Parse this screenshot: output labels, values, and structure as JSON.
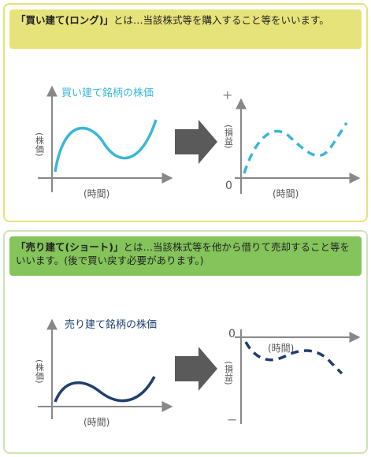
{
  "long": {
    "banner_term": "「買い建て(ロング)」",
    "banner_rest": "とは…当該株式等を購入すること等をいいます。",
    "chart_title": "買い建て銘柄の株価",
    "ylabel": "(株価)",
    "xlabel": "(時間)",
    "pl_ylabel": "(損益)",
    "pl_xlabel": "(時間)",
    "sign": "+",
    "zero": "0"
  },
  "short": {
    "banner_term": "「売り建て(ショート)」",
    "banner_rest": "とは…当該株式等を他から借りて売却すること等をいいます。(後で買い戻す必要があります。)",
    "chart_title": "売り建て銘柄の株価",
    "ylabel": "(株価)",
    "xlabel": "(時間)",
    "pl_ylabel": "(損益)",
    "pl_xlabel": "(時間)",
    "sign": "−",
    "zero": "0"
  },
  "colors": {
    "long_accent": "#3ab6d8",
    "short_accent": "#1f3f6e",
    "arrow": "#5a5a5a",
    "axis": "#888888"
  },
  "icons": {
    "transition": "right-arrow-icon"
  }
}
